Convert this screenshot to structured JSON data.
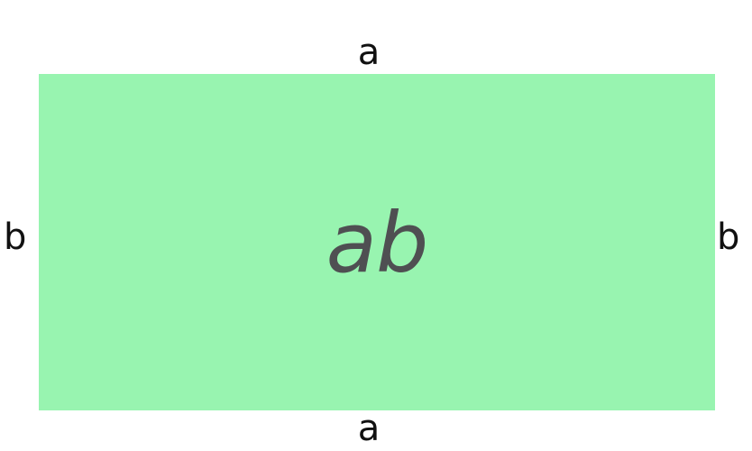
{
  "diagram": {
    "rectangle": {
      "fill": "#98F4B0",
      "area_label": "ab",
      "area_label_color": "#4F4F52"
    },
    "labels": {
      "top": "a",
      "bottom": "a",
      "left": "b",
      "right": "b"
    }
  }
}
